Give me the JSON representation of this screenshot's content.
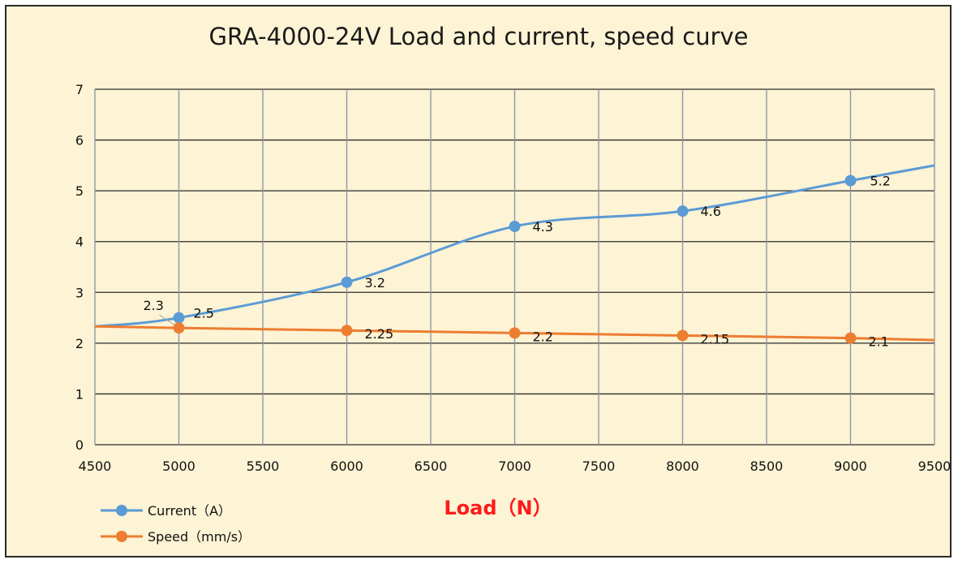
{
  "chart_data": {
    "type": "line",
    "title": "GRA-4000-24V Load and current, speed curve",
    "xlabel": "Load（N）",
    "ylabel": "",
    "xlim": [
      4500,
      9500
    ],
    "ylim": [
      0,
      7
    ],
    "x_ticks": [
      4500,
      5000,
      5500,
      6000,
      6500,
      7000,
      7500,
      8000,
      8500,
      9000,
      9500
    ],
    "y_ticks": [
      0,
      1,
      2,
      3,
      4,
      5,
      6,
      7
    ],
    "grid": true,
    "legend_position": "bottom-left",
    "series": [
      {
        "name": "Current（A）",
        "color": "#5b9bd5",
        "x": [
          5000,
          6000,
          7000,
          8000,
          9000
        ],
        "values": [
          2.5,
          3.2,
          4.3,
          4.6,
          5.2
        ],
        "labels": [
          "2.5",
          "3.2",
          "4.3",
          "4.6",
          "5.2"
        ],
        "trend_start": [
          4500,
          2.33
        ],
        "trend_end": [
          9500,
          5.5
        ]
      },
      {
        "name": "Speed（mm/s）",
        "color": "#ed7d31",
        "x": [
          5000,
          6000,
          7000,
          8000,
          9000
        ],
        "values": [
          2.3,
          2.25,
          2.2,
          2.15,
          2.1
        ],
        "labels": [
          "2.3",
          "2.25",
          "2.2",
          "2.15",
          "2.1"
        ],
        "trend_start": [
          4500,
          2.33
        ],
        "trend_end": [
          9500,
          2.06
        ]
      }
    ]
  }
}
